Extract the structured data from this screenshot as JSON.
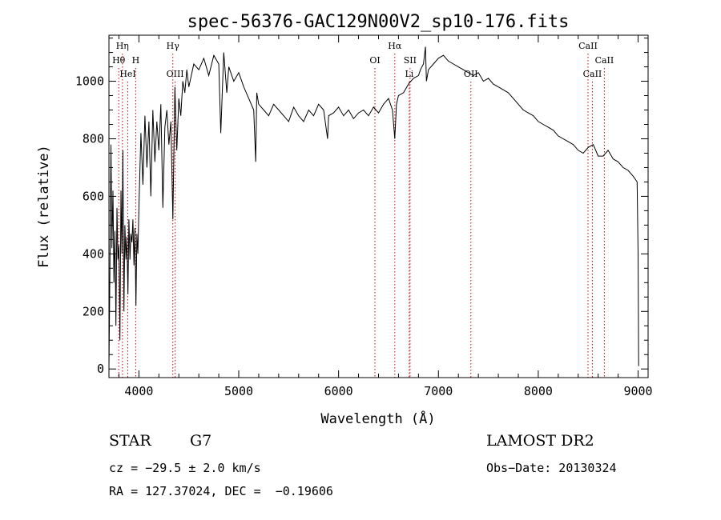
{
  "chart_data": {
    "type": "line",
    "title": "spec-56376-GAC129N00V2_sp10-176.fits",
    "xlabel": "Wavelength (Å)",
    "ylabel": "Flux (relative)",
    "xlim": [
      3700,
      9100
    ],
    "ylim": [
      -30,
      1160
    ],
    "x_ticks": [
      4000,
      5000,
      6000,
      7000,
      8000,
      9000
    ],
    "y_ticks": [
      0,
      200,
      400,
      600,
      800,
      1000
    ],
    "grid": false,
    "legend": "none",
    "line_color": "#000000",
    "marker_color": "#cc0000",
    "series": [
      {
        "x": [
          3700,
          3710,
          3720,
          3730,
          3740,
          3750,
          3760,
          3770,
          3780,
          3790,
          3800,
          3810,
          3820,
          3830,
          3840,
          3850,
          3860,
          3870,
          3880,
          3890,
          3900,
          3910,
          3920,
          3930,
          3940,
          3950,
          3960,
          3970,
          3980,
          3990,
          4000,
          4020,
          4040,
          4060,
          4080,
          4100,
          4120,
          4140,
          4160,
          4180,
          4200,
          4220,
          4240,
          4260,
          4280,
          4300,
          4320,
          4340,
          4360,
          4380,
          4400,
          4420,
          4440,
          4460,
          4480,
          4500,
          4550,
          4600,
          4650,
          4700,
          4750,
          4800,
          4820,
          4850,
          4880,
          4900,
          4950,
          5000,
          5050,
          5100,
          5150,
          5170,
          5180,
          5200,
          5250,
          5300,
          5350,
          5400,
          5450,
          5500,
          5550,
          5600,
          5650,
          5700,
          5750,
          5800,
          5850,
          5890,
          5900,
          5950,
          6000,
          6050,
          6100,
          6150,
          6200,
          6250,
          6300,
          6350,
          6400,
          6450,
          6500,
          6540,
          6563,
          6580,
          6600,
          6650,
          6700,
          6750,
          6800,
          6820,
          6850,
          6870,
          6880,
          6900,
          6950,
          7000,
          7050,
          7100,
          7150,
          7200,
          7250,
          7300,
          7350,
          7400,
          7450,
          7500,
          7550,
          7600,
          7650,
          7700,
          7750,
          7800,
          7850,
          7900,
          7950,
          8000,
          8050,
          8100,
          8150,
          8200,
          8250,
          8300,
          8350,
          8400,
          8450,
          8500,
          8550,
          8600,
          8650,
          8700,
          8750,
          8800,
          8850,
          8900,
          8950,
          8990,
          9000,
          9005
        ],
        "y": [
          0,
          350,
          780,
          420,
          620,
          300,
          480,
          150,
          560,
          380,
          430,
          100,
          620,
          400,
          760,
          200,
          500,
          380,
          460,
          260,
          520,
          380,
          470,
          440,
          520,
          360,
          490,
          220,
          470,
          400,
          560,
          820,
          640,
          880,
          700,
          860,
          600,
          900,
          720,
          860,
          760,
          920,
          560,
          840,
          900,
          780,
          860,
          520,
          980,
          760,
          940,
          880,
          1000,
          960,
          1040,
          980,
          1060,
          1040,
          1080,
          1020,
          1090,
          1060,
          820,
          1100,
          960,
          1050,
          1000,
          1030,
          980,
          940,
          900,
          720,
          960,
          920,
          900,
          880,
          920,
          900,
          880,
          860,
          910,
          880,
          860,
          900,
          880,
          920,
          900,
          800,
          880,
          890,
          910,
          880,
          900,
          870,
          890,
          900,
          880,
          910,
          890,
          920,
          940,
          900,
          800,
          920,
          950,
          960,
          990,
          1010,
          1020,
          1040,
          1060,
          1120,
          1000,
          1040,
          1060,
          1080,
          1090,
          1070,
          1060,
          1050,
          1040,
          1030,
          1020,
          1030,
          1000,
          1010,
          990,
          980,
          970,
          960,
          940,
          920,
          900,
          890,
          880,
          860,
          850,
          840,
          830,
          810,
          800,
          790,
          780,
          760,
          750,
          770,
          780,
          740,
          740,
          760,
          730,
          720,
          700,
          690,
          670,
          650,
          400,
          10
        ]
      }
    ],
    "line_markers": [
      {
        "label": "Hη",
        "x": 3835,
        "row": 0
      },
      {
        "label": "Hθ",
        "x": 3798,
        "row": 1
      },
      {
        "label": "H",
        "x": 3968,
        "row": 1
      },
      {
        "label": "HeI",
        "x": 3889,
        "row": 2
      },
      {
        "label": "Hγ",
        "x": 4340,
        "row": 0
      },
      {
        "label": "OIII",
        "x": 4363,
        "row": 2
      },
      {
        "label": "OI",
        "x": 6364,
        "row": 1
      },
      {
        "label": "Hα",
        "x": 6563,
        "row": 0
      },
      {
        "label": "SII",
        "x": 6716,
        "row": 1
      },
      {
        "label": "Li",
        "x": 6708,
        "row": 2
      },
      {
        "label": "OII",
        "x": 7325,
        "row": 2
      },
      {
        "label": "CaII",
        "x": 8498,
        "row": 0
      },
      {
        "label": "CaII",
        "x": 8662,
        "row": 1
      },
      {
        "label": "CaII",
        "x": 8542,
        "row": 2
      }
    ]
  },
  "info": {
    "object_class": "STAR",
    "subclass": "G7",
    "survey": "LAMOST DR2",
    "redshift": "cz = −29.5 ± 2.0 km/s",
    "obs_date": "Obs−Date: 20130324",
    "coords": "RA = 127.37024, DEC =  −0.19606"
  }
}
